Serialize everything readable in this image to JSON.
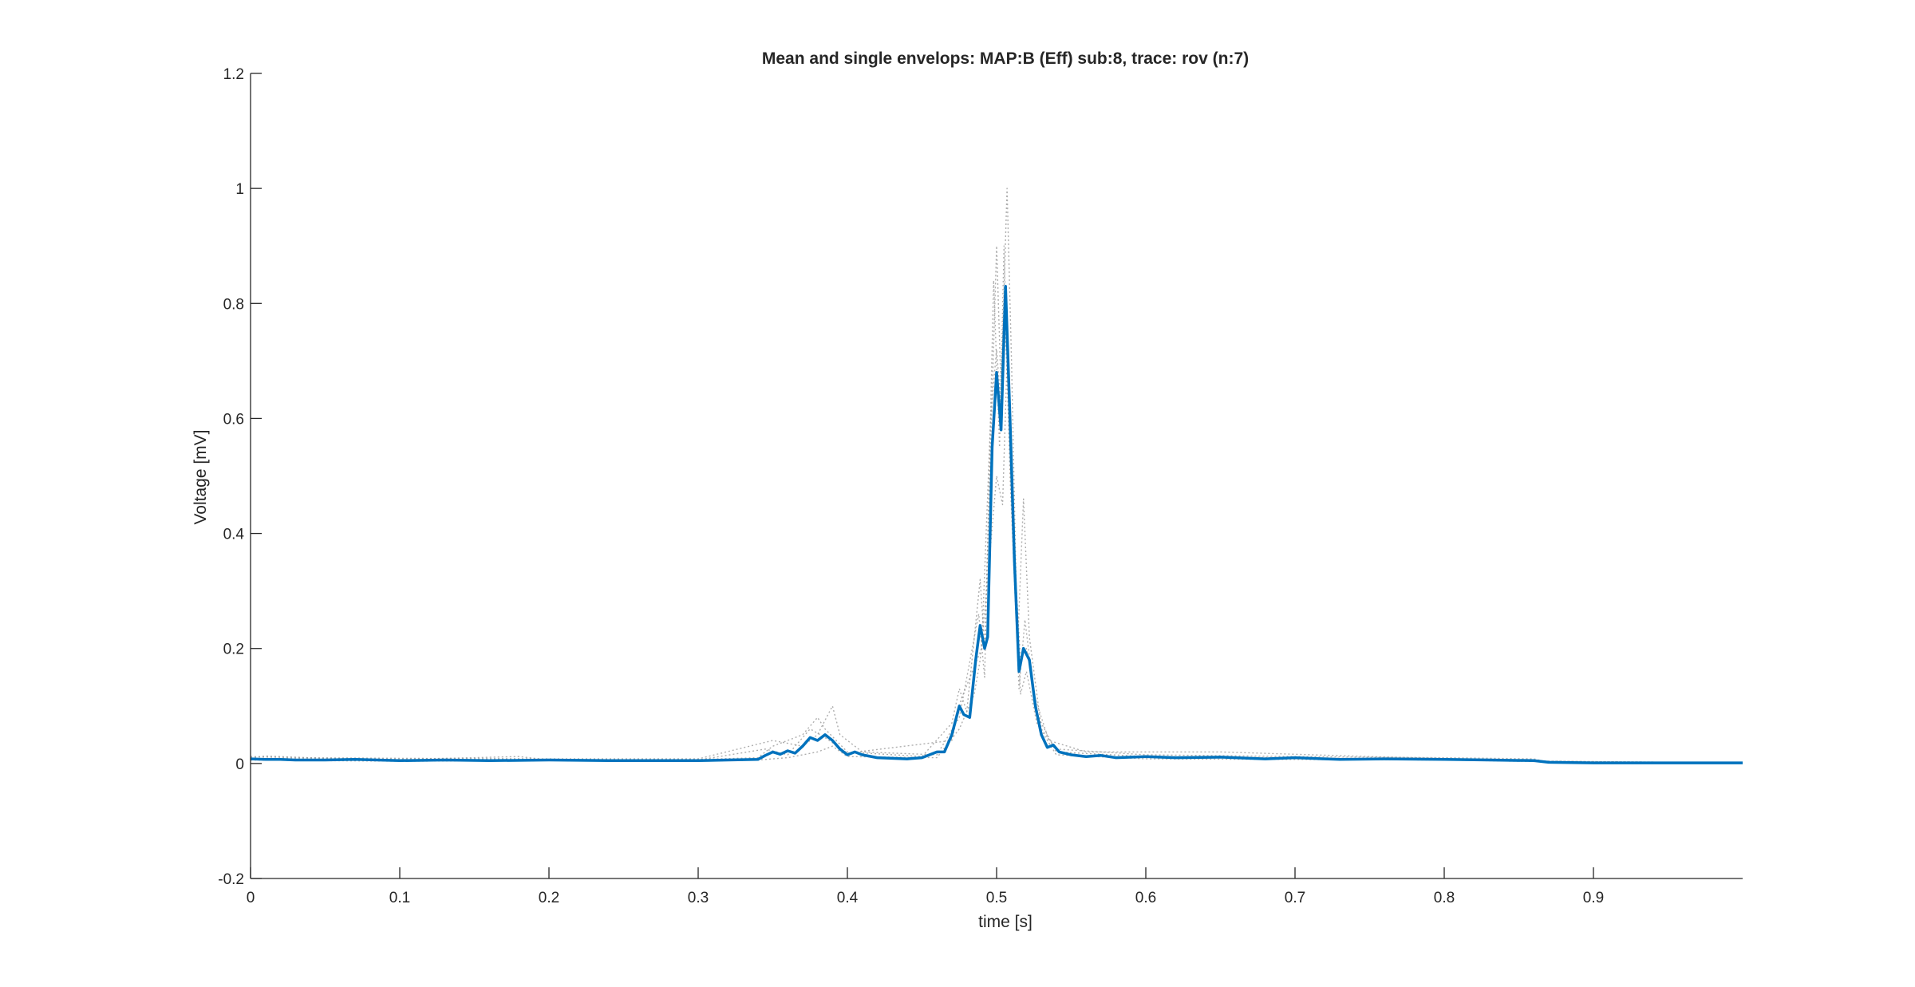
{
  "chart_data": {
    "type": "line",
    "title": "Mean and single envelops: MAP:B (Eff) sub:8, trace: rov (n:7)",
    "xlabel": "time [s]",
    "ylabel": "Voltage [mV]",
    "xlim": [
      0,
      1.0
    ],
    "ylim": [
      -0.2,
      1.2
    ],
    "xticks": [
      0,
      0.1,
      0.2,
      0.3,
      0.4,
      0.5,
      0.6,
      0.7,
      0.8,
      0.9
    ],
    "xtick_labels": [
      "0",
      "0.1",
      "0.2",
      "0.3",
      "0.4",
      "0.5",
      "0.6",
      "0.7",
      "0.8",
      "0.9"
    ],
    "yticks": [
      -0.2,
      0,
      0.2,
      0.4,
      0.6,
      0.8,
      1.0,
      1.2
    ],
    "ytick_labels": [
      "-0.2",
      "0",
      "0.2",
      "0.4",
      "0.6",
      "0.8",
      "1",
      "1.2"
    ],
    "grid": false,
    "legend": "none",
    "colors": {
      "mean": "#0072BD",
      "single": "#9a9a9a",
      "axis": "#262626"
    },
    "series": [
      {
        "style": "solid",
        "points": [
          [
            0.0,
            0.008
          ],
          [
            0.01,
            0.007
          ],
          [
            0.02,
            0.007
          ],
          [
            0.03,
            0.006
          ],
          [
            0.05,
            0.006
          ],
          [
            0.07,
            0.007
          ],
          [
            0.1,
            0.005
          ],
          [
            0.13,
            0.006
          ],
          [
            0.16,
            0.005
          ],
          [
            0.2,
            0.006
          ],
          [
            0.24,
            0.005
          ],
          [
            0.28,
            0.005
          ],
          [
            0.3,
            0.005
          ],
          [
            0.32,
            0.006
          ],
          [
            0.34,
            0.007
          ],
          [
            0.345,
            0.014
          ],
          [
            0.35,
            0.02
          ],
          [
            0.355,
            0.016
          ],
          [
            0.36,
            0.022
          ],
          [
            0.365,
            0.018
          ],
          [
            0.37,
            0.03
          ],
          [
            0.375,
            0.045
          ],
          [
            0.38,
            0.04
          ],
          [
            0.385,
            0.05
          ],
          [
            0.39,
            0.04
          ],
          [
            0.395,
            0.025
          ],
          [
            0.4,
            0.015
          ],
          [
            0.405,
            0.02
          ],
          [
            0.41,
            0.015
          ],
          [
            0.42,
            0.01
          ],
          [
            0.43,
            0.009
          ],
          [
            0.44,
            0.008
          ],
          [
            0.45,
            0.01
          ],
          [
            0.46,
            0.02
          ],
          [
            0.465,
            0.02
          ],
          [
            0.47,
            0.05
          ],
          [
            0.475,
            0.1
          ],
          [
            0.478,
            0.085
          ],
          [
            0.482,
            0.08
          ],
          [
            0.486,
            0.18
          ],
          [
            0.489,
            0.24
          ],
          [
            0.492,
            0.2
          ],
          [
            0.494,
            0.22
          ],
          [
            0.497,
            0.55
          ],
          [
            0.5,
            0.68
          ],
          [
            0.503,
            0.58
          ],
          [
            0.506,
            0.83
          ],
          [
            0.509,
            0.6
          ],
          [
            0.512,
            0.35
          ],
          [
            0.515,
            0.16
          ],
          [
            0.518,
            0.2
          ],
          [
            0.522,
            0.18
          ],
          [
            0.526,
            0.1
          ],
          [
            0.53,
            0.05
          ],
          [
            0.534,
            0.028
          ],
          [
            0.538,
            0.032
          ],
          [
            0.542,
            0.02
          ],
          [
            0.55,
            0.015
          ],
          [
            0.56,
            0.012
          ],
          [
            0.57,
            0.014
          ],
          [
            0.58,
            0.01
          ],
          [
            0.6,
            0.012
          ],
          [
            0.62,
            0.01
          ],
          [
            0.65,
            0.011
          ],
          [
            0.68,
            0.008
          ],
          [
            0.7,
            0.01
          ],
          [
            0.73,
            0.007
          ],
          [
            0.76,
            0.008
          ],
          [
            0.8,
            0.007
          ],
          [
            0.83,
            0.006
          ],
          [
            0.86,
            0.005
          ],
          [
            0.87,
            0.002
          ],
          [
            0.9,
            0.001
          ],
          [
            0.95,
            0.001
          ],
          [
            1.0,
            0.001
          ]
        ]
      },
      {
        "style": "dotted",
        "points": [
          [
            0.0,
            0.01
          ],
          [
            0.01,
            0.013
          ],
          [
            0.05,
            0.009
          ],
          [
            0.1,
            0.007
          ],
          [
            0.18,
            0.012
          ],
          [
            0.2,
            0.006
          ],
          [
            0.3,
            0.007
          ],
          [
            0.34,
            0.01
          ],
          [
            0.35,
            0.03
          ],
          [
            0.37,
            0.05
          ],
          [
            0.38,
            0.08
          ],
          [
            0.385,
            0.06
          ],
          [
            0.4,
            0.02
          ],
          [
            0.45,
            0.012
          ],
          [
            0.47,
            0.07
          ],
          [
            0.475,
            0.13
          ],
          [
            0.48,
            0.09
          ],
          [
            0.489,
            0.32
          ],
          [
            0.492,
            0.2
          ],
          [
            0.5,
            0.9
          ],
          [
            0.503,
            0.65
          ],
          [
            0.507,
            1.0
          ],
          [
            0.51,
            0.7
          ],
          [
            0.514,
            0.2
          ],
          [
            0.518,
            0.46
          ],
          [
            0.522,
            0.22
          ],
          [
            0.53,
            0.06
          ],
          [
            0.54,
            0.025
          ],
          [
            0.6,
            0.015
          ],
          [
            0.7,
            0.012
          ],
          [
            0.8,
            0.01
          ],
          [
            0.86,
            0.008
          ],
          [
            0.87,
            0.002
          ],
          [
            1.0,
            0.001
          ]
        ]
      },
      {
        "style": "dotted",
        "points": [
          [
            0.0,
            0.006
          ],
          [
            0.05,
            0.005
          ],
          [
            0.1,
            0.004
          ],
          [
            0.2,
            0.005
          ],
          [
            0.3,
            0.004
          ],
          [
            0.34,
            0.006
          ],
          [
            0.36,
            0.01
          ],
          [
            0.38,
            0.02
          ],
          [
            0.39,
            0.03
          ],
          [
            0.4,
            0.012
          ],
          [
            0.46,
            0.01
          ],
          [
            0.475,
            0.06
          ],
          [
            0.485,
            0.12
          ],
          [
            0.489,
            0.18
          ],
          [
            0.495,
            0.35
          ],
          [
            0.5,
            0.5
          ],
          [
            0.504,
            0.45
          ],
          [
            0.507,
            0.7
          ],
          [
            0.511,
            0.4
          ],
          [
            0.516,
            0.12
          ],
          [
            0.52,
            0.16
          ],
          [
            0.527,
            0.07
          ],
          [
            0.54,
            0.015
          ],
          [
            0.6,
            0.008
          ],
          [
            0.7,
            0.007
          ],
          [
            0.8,
            0.006
          ],
          [
            0.87,
            0.003
          ],
          [
            1.0,
            0.001
          ]
        ]
      },
      {
        "style": "dotted",
        "points": [
          [
            0.0,
            0.012
          ],
          [
            0.03,
            0.01
          ],
          [
            0.1,
            0.009
          ],
          [
            0.2,
            0.008
          ],
          [
            0.3,
            0.008
          ],
          [
            0.35,
            0.04
          ],
          [
            0.37,
            0.03
          ],
          [
            0.38,
            0.05
          ],
          [
            0.39,
            0.1
          ],
          [
            0.395,
            0.05
          ],
          [
            0.41,
            0.02
          ],
          [
            0.46,
            0.015
          ],
          [
            0.475,
            0.08
          ],
          [
            0.488,
            0.26
          ],
          [
            0.492,
            0.15
          ],
          [
            0.498,
            0.84
          ],
          [
            0.502,
            0.55
          ],
          [
            0.505,
            0.9
          ],
          [
            0.509,
            0.5
          ],
          [
            0.515,
            0.13
          ],
          [
            0.519,
            0.25
          ],
          [
            0.525,
            0.12
          ],
          [
            0.535,
            0.04
          ],
          [
            0.56,
            0.02
          ],
          [
            0.65,
            0.02
          ],
          [
            0.75,
            0.012
          ],
          [
            0.87,
            0.004
          ],
          [
            1.0,
            0.001
          ]
        ]
      },
      {
        "style": "dotted",
        "points": [
          [
            0.0,
            0.009
          ],
          [
            0.05,
            0.008
          ],
          [
            0.1,
            0.006
          ],
          [
            0.2,
            0.007
          ],
          [
            0.3,
            0.006
          ],
          [
            0.345,
            0.025
          ],
          [
            0.36,
            0.015
          ],
          [
            0.375,
            0.06
          ],
          [
            0.385,
            0.045
          ],
          [
            0.4,
            0.018
          ],
          [
            0.47,
            0.04
          ],
          [
            0.476,
            0.11
          ],
          [
            0.49,
            0.2
          ],
          [
            0.496,
            0.6
          ],
          [
            0.5,
            0.72
          ],
          [
            0.503,
            0.62
          ],
          [
            0.506,
            0.75
          ],
          [
            0.51,
            0.45
          ],
          [
            0.516,
            0.18
          ],
          [
            0.52,
            0.2
          ],
          [
            0.528,
            0.08
          ],
          [
            0.54,
            0.02
          ],
          [
            0.6,
            0.012
          ],
          [
            0.7,
            0.01
          ],
          [
            0.87,
            0.004
          ],
          [
            1.0,
            0.001
          ]
        ]
      }
    ]
  }
}
